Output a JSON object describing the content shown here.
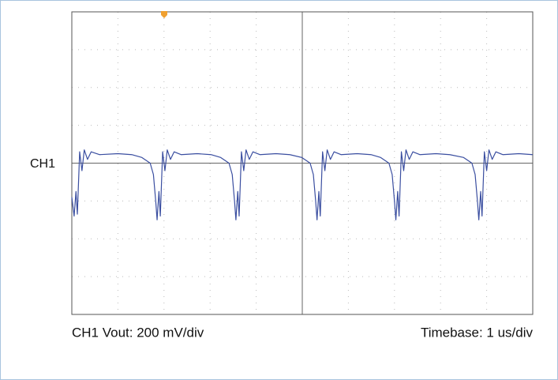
{
  "chart_data": {
    "type": "line",
    "subtitle": "CH1 Vout: 200 mV/div",
    "xlabel": "Timebase: 1 us/div",
    "xlim": [
      0,
      10
    ],
    "ylim": [
      -800,
      800
    ],
    "xticks": [
      0,
      1,
      2,
      3,
      4,
      5,
      6,
      7,
      8,
      9,
      10
    ],
    "yticks": [
      -800,
      -600,
      -400,
      -200,
      0,
      200,
      400,
      600,
      800
    ],
    "grid": true,
    "x": [
      0,
      0.05,
      0.09,
      0.12,
      0.17,
      0.22,
      0.27,
      0.34,
      0.42,
      0.6,
      1.0,
      1.3,
      1.52,
      1.7,
      1.77,
      1.82,
      1.85,
      1.89,
      1.92,
      1.97,
      2.02,
      2.07,
      2.14,
      2.22,
      2.37,
      2.72,
      3.02,
      3.23,
      3.41,
      3.48,
      3.53,
      3.56,
      3.6,
      3.63,
      3.68,
      3.73,
      3.78,
      3.85,
      3.93,
      4.08,
      4.43,
      4.73,
      4.99,
      5.17,
      5.24,
      5.29,
      5.32,
      5.36,
      5.39,
      5.44,
      5.49,
      5.54,
      5.61,
      5.69,
      5.84,
      6.19,
      6.49,
      6.7,
      6.88,
      6.95,
      7.0,
      7.03,
      7.07,
      7.1,
      7.15,
      7.2,
      7.25,
      7.32,
      7.4,
      7.55,
      7.9,
      8.2,
      8.5,
      8.68,
      8.75,
      8.8,
      8.83,
      8.87,
      8.9,
      8.95,
      9.0,
      9.05,
      9.12,
      9.2,
      9.35,
      9.7,
      10
    ],
    "series": [
      {
        "name": "CH1",
        "color": "#3a4ea0",
        "values": [
          -180,
          -280,
          -150,
          -270,
          60,
          -40,
          70,
          20,
          60,
          45,
          50,
          45,
          30,
          0,
          -60,
          -200,
          -300,
          -150,
          -280,
          60,
          -40,
          70,
          20,
          60,
          45,
          50,
          45,
          30,
          0,
          -60,
          -200,
          -300,
          -150,
          -280,
          60,
          -40,
          70,
          20,
          60,
          45,
          50,
          45,
          30,
          0,
          -60,
          -200,
          -300,
          -150,
          -280,
          60,
          -40,
          70,
          20,
          60,
          45,
          50,
          45,
          30,
          0,
          -60,
          -200,
          -300,
          -150,
          -280,
          60,
          -40,
          70,
          20,
          60,
          45,
          50,
          45,
          30,
          0,
          -60,
          -200,
          -300,
          -150,
          -280,
          60,
          -40,
          70,
          20,
          60,
          45,
          50,
          45
        ]
      }
    ]
  }
}
